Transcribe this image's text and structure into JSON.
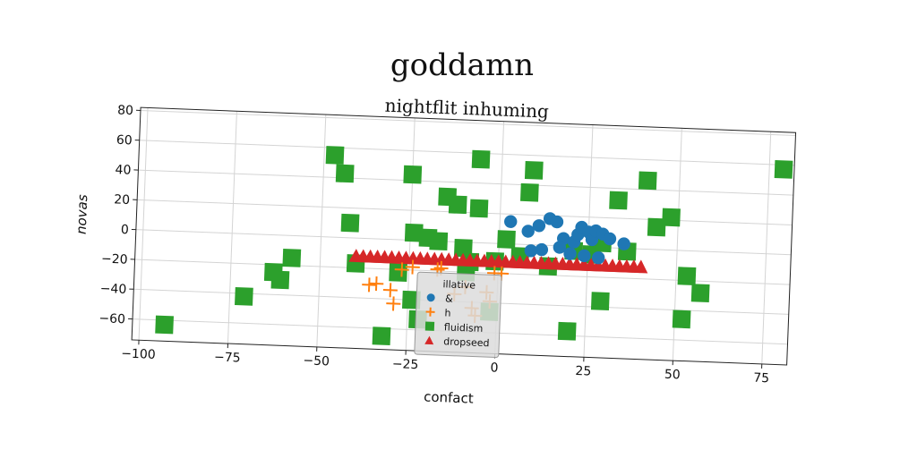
{
  "chart_data": {
    "type": "scatter",
    "title": "goddamn",
    "subtitle": "nightflit inhuming",
    "xlabel": "confact",
    "ylabel": "novas",
    "xlim": [
      -102,
      82
    ],
    "ylim": [
      -74,
      82
    ],
    "xticks": [
      -100,
      -75,
      -50,
      -25,
      0,
      25,
      50,
      75
    ],
    "yticks": [
      -60,
      -40,
      -20,
      0,
      20,
      40,
      60,
      80
    ],
    "grid": true,
    "legend": {
      "title": "illative",
      "placement": "bottom-center"
    },
    "colors": {
      "blue": "#1f77b4",
      "orange": "#ff7f0e",
      "green": "#2ca02c",
      "red": "#d62728"
    },
    "series": [
      {
        "name": "&",
        "marker": "circle",
        "color": "#1f77b4",
        "points": [
          [
            3,
            15
          ],
          [
            8,
            9
          ],
          [
            11,
            13
          ],
          [
            14,
            18
          ],
          [
            16,
            16
          ],
          [
            18,
            5
          ],
          [
            21,
            3
          ],
          [
            22,
            8
          ],
          [
            23,
            13
          ],
          [
            25,
            10
          ],
          [
            26,
            5
          ],
          [
            27,
            11
          ],
          [
            29,
            9
          ],
          [
            31,
            6
          ],
          [
            35,
            3
          ],
          [
            17,
            -1
          ],
          [
            12,
            -3
          ],
          [
            9,
            -4
          ],
          [
            20,
            -5
          ],
          [
            24,
            -6
          ],
          [
            28,
            -7
          ]
        ]
      },
      {
        "name": "h",
        "marker": "plus",
        "color": "#ff7f0e",
        "points": [
          [
            -36,
            -31
          ],
          [
            -34,
            -30
          ],
          [
            -30,
            -34
          ],
          [
            -29,
            -43
          ],
          [
            -27,
            -20
          ],
          [
            -24,
            -18
          ],
          [
            -17,
            -19
          ],
          [
            -16,
            -18
          ],
          [
            -9,
            -30
          ],
          [
            -7,
            -44
          ],
          [
            -6,
            -49
          ],
          [
            -1,
            -20
          ],
          [
            1,
            -20
          ],
          [
            -3,
            -33
          ],
          [
            -2,
            -39
          ],
          [
            -12,
            -35
          ]
        ]
      },
      {
        "name": "fluidism",
        "marker": "square",
        "color": "#2ca02c",
        "points": [
          [
            -93,
            -63
          ],
          [
            -71,
            -42
          ],
          [
            -63,
            -25
          ],
          [
            -61,
            -30
          ],
          [
            -58,
            -15
          ],
          [
            -47,
            55
          ],
          [
            -44,
            43
          ],
          [
            -42,
            10
          ],
          [
            -40,
            -17
          ],
          [
            -32,
            -65
          ],
          [
            -28,
            -22
          ],
          [
            -24,
            -40
          ],
          [
            -22,
            -53
          ],
          [
            -25,
            44
          ],
          [
            -24,
            5
          ],
          [
            -20,
            2
          ],
          [
            -17,
            0
          ],
          [
            -15,
            30
          ],
          [
            -12,
            25
          ],
          [
            -10,
            -4
          ],
          [
            -9,
            -20
          ],
          [
            -8,
            -13
          ],
          [
            -6,
            23
          ],
          [
            -6,
            56
          ],
          [
            -2,
            -46
          ],
          [
            -1,
            -12
          ],
          [
            2,
            3
          ],
          [
            6,
            -8
          ],
          [
            8,
            35
          ],
          [
            9,
            50
          ],
          [
            14,
            -14
          ],
          [
            20,
            -57
          ],
          [
            21,
            -3
          ],
          [
            26,
            -5
          ],
          [
            29,
            3
          ],
          [
            29,
            -36
          ],
          [
            33,
            32
          ],
          [
            36,
            -2
          ],
          [
            41,
            46
          ],
          [
            44,
            15
          ],
          [
            48,
            22
          ],
          [
            52,
            -46
          ],
          [
            53,
            -17
          ],
          [
            57,
            -28
          ],
          [
            79,
            57
          ]
        ]
      },
      {
        "name": "dropseed",
        "marker": "triangle",
        "color": "#d62728",
        "points": [
          [
            -40,
            -12
          ],
          [
            -38,
            -12
          ],
          [
            -36,
            -12
          ],
          [
            -34,
            -12
          ],
          [
            -32,
            -12
          ],
          [
            -30,
            -12
          ],
          [
            -28,
            -12
          ],
          [
            -26,
            -12
          ],
          [
            -24,
            -12
          ],
          [
            -22,
            -12
          ],
          [
            -20,
            -12
          ],
          [
            -18,
            -12
          ],
          [
            -16,
            -12
          ],
          [
            -14,
            -12
          ],
          [
            -12,
            -12
          ],
          [
            -10,
            -12
          ],
          [
            -8,
            -12
          ],
          [
            -6,
            -12
          ],
          [
            -4,
            -12
          ],
          [
            -2,
            -12
          ],
          [
            0,
            -12
          ],
          [
            2,
            -12
          ],
          [
            4,
            -12
          ],
          [
            6,
            -12
          ],
          [
            8,
            -12
          ],
          [
            10,
            -12
          ],
          [
            12,
            -12
          ],
          [
            14,
            -12
          ],
          [
            16,
            -12
          ],
          [
            18,
            -12
          ],
          [
            20,
            -12
          ],
          [
            22,
            -12
          ],
          [
            24,
            -12
          ],
          [
            26,
            -12
          ],
          [
            28,
            -12
          ],
          [
            30,
            -12
          ],
          [
            32,
            -12
          ],
          [
            34,
            -12
          ],
          [
            36,
            -12
          ],
          [
            38,
            -12
          ],
          [
            40,
            -12
          ]
        ]
      }
    ]
  }
}
